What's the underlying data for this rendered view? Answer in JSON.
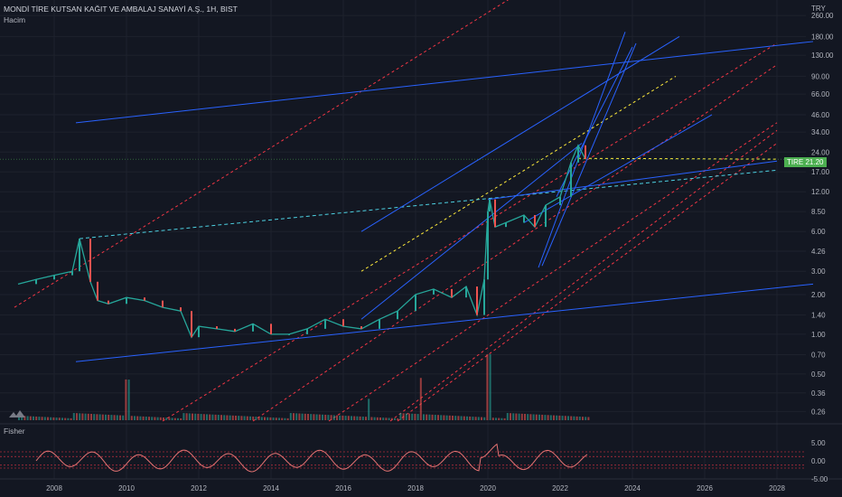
{
  "header": {
    "title": "MONDİ TİRE KUTSAN KAĞIT VE AMBALAJ SANAYİ A.Ş., 1H, BIST",
    "subtitle": "Hacim",
    "currency": "TRY"
  },
  "price_tag": {
    "symbol": "TIRE",
    "price": "21.20"
  },
  "fisher_label": "Fisher",
  "colors": {
    "background": "#131722",
    "candle_up": "#26a69a",
    "candle_down": "#ef5350",
    "trendline_blue": "#2962ff",
    "channel_red_dashed": "#f23645",
    "channel_yellow_dashed": "#ffeb3b",
    "fisher_line": "#e57373",
    "price_tag": "#4caf50"
  },
  "icons": {
    "logo": "tradingview-logo-icon"
  },
  "chart_data": [
    {
      "type": "line",
      "title": "MONDİ TİRE KUTSAN KAĞIT VE AMBALAJ SANAYİ A.Ş., 1H, BIST",
      "scale": "log",
      "ylim": [
        0.22,
        300
      ],
      "x_ticks": [
        "2008",
        "2010",
        "2012",
        "2014",
        "2016",
        "2018",
        "2020",
        "2022",
        "2024",
        "2026",
        "2028"
      ],
      "y_ticks": [
        "260.00",
        "180.00",
        "130.00",
        "90.00",
        "66.00",
        "46.00",
        "34.00",
        "24.00",
        "17.00",
        "12.00",
        "8.50",
        "6.00",
        "4.26",
        "3.00",
        "2.00",
        "1.40",
        "1.00",
        "0.70",
        "0.50",
        "0.36",
        "0.26"
      ],
      "series": [
        {
          "values_x": [
            2007.0,
            2007.5,
            2008.0,
            2008.5,
            2008.7,
            2009.0,
            2009.2,
            2009.5,
            2010.0,
            2010.5,
            2011.0,
            2011.5,
            2011.8,
            2012.0,
            2012.5,
            2013.0,
            2013.5,
            2014.0,
            2014.5,
            2015.0,
            2015.5,
            2016.0,
            2016.5,
            2017.0,
            2017.5,
            2018.0,
            2018.5,
            2019.0,
            2019.4,
            2019.7,
            2019.9,
            2020.0,
            2020.05,
            2020.2,
            2020.5,
            2021.0,
            2021.3,
            2021.6,
            2022.0,
            2022.3,
            2022.5,
            2022.7
          ],
          "values_y": [
            2.4,
            2.6,
            2.8,
            3.0,
            5.3,
            2.5,
            1.8,
            1.7,
            1.9,
            1.8,
            1.6,
            1.5,
            0.95,
            1.15,
            1.1,
            1.05,
            1.2,
            1.0,
            1.0,
            1.1,
            1.3,
            1.15,
            1.1,
            1.3,
            1.5,
            2.0,
            2.2,
            1.9,
            2.3,
            1.4,
            2.6,
            8.5,
            10.5,
            6.5,
            7.0,
            8.0,
            6.5,
            9.5,
            11.0,
            20.0,
            27.0,
            21.2
          ]
        }
      ],
      "last_price": 21.2
    },
    {
      "type": "line",
      "title": "Fisher",
      "ylim": [
        -2.5,
        7.5
      ],
      "y_ticks": [
        "5.00",
        "0.00",
        "-5.00"
      ]
    }
  ]
}
